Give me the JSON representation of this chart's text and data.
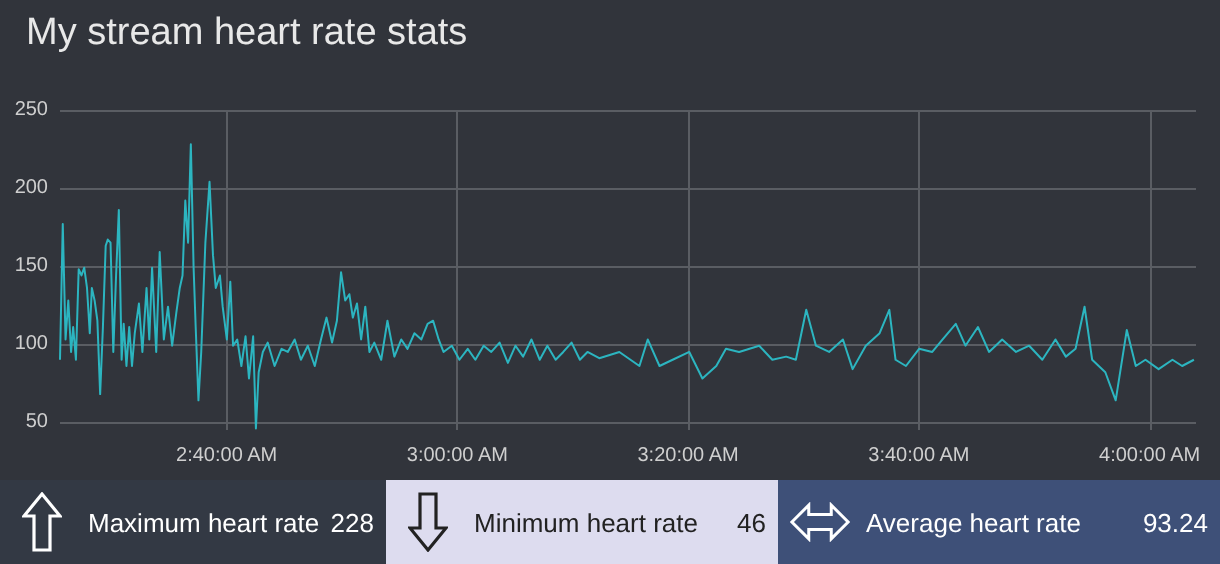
{
  "chart_data": [
    {
      "type": "line",
      "title": "My stream heart rate stats",
      "color": "#2cb5c0",
      "grid": true,
      "marker": "none",
      "line_style": "solid",
      "xlim": [
        2.426,
        4.067
      ],
      "ylim": [
        45,
        250
      ],
      "yticks": [
        50,
        100,
        150,
        200,
        250
      ],
      "xticks": [
        {
          "value": 2.6667,
          "label": "2:40:00 AM"
        },
        {
          "value": 3,
          "label": "3:00:00 AM"
        },
        {
          "value": 3.3333,
          "label": "3:20:00 AM"
        },
        {
          "value": 3.6667,
          "label": "3:40:00 AM"
        },
        {
          "value": 4,
          "label": "4:00:00 AM"
        }
      ],
      "x": [
        2.426,
        2.43,
        2.434,
        2.438,
        2.442,
        2.445,
        2.449,
        2.453,
        2.457,
        2.461,
        2.465,
        2.469,
        2.472,
        2.476,
        2.48,
        2.484,
        2.488,
        2.492,
        2.495,
        2.499,
        2.503,
        2.507,
        2.511,
        2.515,
        2.518,
        2.522,
        2.526,
        2.53,
        2.534,
        2.54,
        2.545,
        2.551,
        2.555,
        2.559,
        2.565,
        2.57,
        2.576,
        2.582,
        2.588,
        2.594,
        2.599,
        2.603,
        2.607,
        2.611,
        2.615,
        2.619,
        2.622,
        2.626,
        2.63,
        2.636,
        2.642,
        2.647,
        2.651,
        2.657,
        2.661,
        2.667,
        2.672,
        2.676,
        2.682,
        2.688,
        2.694,
        2.699,
        2.705,
        2.709,
        2.713,
        2.719,
        2.726,
        2.736,
        2.746,
        2.755,
        2.765,
        2.774,
        2.784,
        2.794,
        2.803,
        2.811,
        2.819,
        2.826,
        2.832,
        2.838,
        2.844,
        2.849,
        2.855,
        2.861,
        2.867,
        2.873,
        2.88,
        2.89,
        2.899,
        2.909,
        2.919,
        2.928,
        2.938,
        2.948,
        2.957,
        2.965,
        2.973,
        2.98,
        2.992,
        3.003,
        3.015,
        3.026,
        3.038,
        3.049,
        3.061,
        3.073,
        3.084,
        3.095,
        3.107,
        3.119,
        3.13,
        3.142,
        3.153,
        3.165,
        3.177,
        3.188,
        3.205,
        3.234,
        3.263,
        3.275,
        3.292,
        3.311,
        3.335,
        3.354,
        3.374,
        3.388,
        3.407,
        3.436,
        3.455,
        3.475,
        3.489,
        3.504,
        3.518,
        3.537,
        3.557,
        3.571,
        3.59,
        3.61,
        3.624,
        3.633,
        3.648,
        3.667,
        3.686,
        3.701,
        3.72,
        3.734,
        3.752,
        3.768,
        3.787,
        3.807,
        3.826,
        3.845,
        3.864,
        3.879,
        3.893,
        3.906,
        3.917,
        3.936,
        3.951,
        3.967,
        3.98,
        3.994,
        4.013,
        4.033,
        4.047,
        4.064
      ],
      "values": [
        90,
        177,
        103,
        128,
        95,
        111,
        90,
        148,
        144,
        149,
        136,
        107,
        136,
        128,
        115,
        68,
        111,
        163,
        167,
        165,
        95,
        144,
        186,
        90,
        113,
        86,
        111,
        86,
        107,
        126,
        95,
        136,
        103,
        149,
        95,
        159,
        103,
        124,
        99,
        120,
        136,
        144,
        192,
        165,
        228,
        149,
        111,
        64,
        95,
        165,
        204,
        157,
        136,
        144,
        124,
        103,
        140,
        99,
        103,
        86,
        105,
        78,
        105,
        46,
        82,
        95,
        101,
        86,
        97,
        95,
        103,
        90,
        99,
        86,
        103,
        117,
        101,
        115,
        146,
        128,
        132,
        117,
        126,
        103,
        124,
        95,
        101,
        90,
        115,
        92,
        103,
        97,
        107,
        103,
        113,
        115,
        103,
        95,
        99,
        90,
        97,
        90,
        99,
        95,
        101,
        88,
        99,
        92,
        103,
        90,
        99,
        90,
        95,
        101,
        90,
        95,
        91,
        95,
        86,
        103,
        86,
        90,
        95,
        78,
        86,
        97,
        95,
        99,
        90,
        92,
        90,
        122,
        99,
        95,
        103,
        84,
        99,
        107,
        122,
        90,
        86,
        97,
        95,
        103,
        113,
        99,
        111,
        95,
        103,
        95,
        99,
        90,
        103,
        92,
        97,
        124,
        90,
        82,
        64,
        109,
        86,
        90,
        84,
        90,
        86,
        90
      ]
    },
    {
      "type": "other",
      "categories": [
        "Maximum heart rate",
        "Minimum heart rate",
        "Average heart rate"
      ],
      "values": [
        228,
        46,
        93.24
      ],
      "colors": [
        "#333944",
        "#dddcef",
        "#3e5078"
      ],
      "data_labels": true
    }
  ]
}
